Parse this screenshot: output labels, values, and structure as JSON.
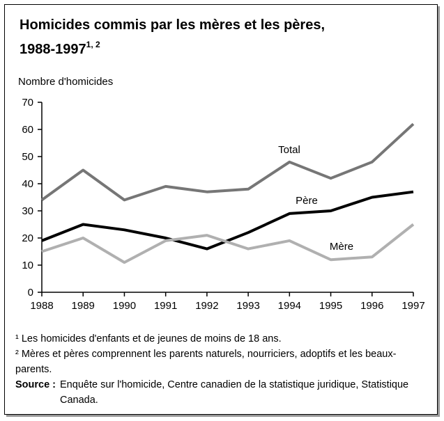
{
  "chart_data": {
    "type": "line",
    "title": "Homicides commis par les mères et les pères,",
    "title_line2": "1988-1997",
    "title_superscript": "1, 2",
    "y_axis_label": "Nombre d'homicides",
    "x": [
      1988,
      1989,
      1990,
      1991,
      1992,
      1993,
      1994,
      1995,
      1996,
      1997
    ],
    "xlim": [
      1988,
      1997
    ],
    "xticks": [
      1988,
      1989,
      1990,
      1991,
      1992,
      1993,
      1994,
      1995,
      1996,
      1997
    ],
    "ylim": [
      0,
      70
    ],
    "yticks": [
      0,
      10,
      20,
      30,
      40,
      50,
      60,
      70
    ],
    "grid": false,
    "series": [
      {
        "name": "Total",
        "color": "#767676",
        "values": [
          34,
          45,
          34,
          39,
          37,
          38,
          48,
          42,
          48,
          62
        ]
      },
      {
        "name": "Père",
        "color": "#000000",
        "values": [
          19,
          25,
          23,
          20,
          16,
          22,
          29,
          30,
          35,
          37
        ]
      },
      {
        "name": "Mère",
        "color": "#b0b0b0",
        "values": [
          15,
          20,
          11,
          19,
          21,
          16,
          19,
          12,
          13,
          25
        ]
      }
    ],
    "notes": [
      "¹ Les homicides d'enfants et de jeunes de moins de 18 ans.",
      "² Mères et pères comprennent les parents naturels, nourriciers, adoptifs et les beaux-parents."
    ],
    "source_label": "Source :",
    "source": "Enquête sur l'homicide, Centre canadien de la statistique juridique, Statistique Canada."
  }
}
